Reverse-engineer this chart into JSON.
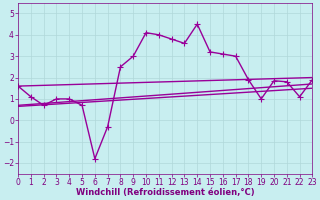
{
  "xlabel": "Windchill (Refroidissement éolien,°C)",
  "xlim": [
    0,
    23
  ],
  "ylim": [
    -2.5,
    5.5
  ],
  "xticks": [
    0,
    1,
    2,
    3,
    4,
    5,
    6,
    7,
    8,
    9,
    10,
    11,
    12,
    13,
    14,
    15,
    16,
    17,
    18,
    19,
    20,
    21,
    22,
    23
  ],
  "yticks": [
    -2,
    -1,
    0,
    1,
    2,
    3,
    4,
    5
  ],
  "background_color": "#c8eef0",
  "grid_color": "#b0d8da",
  "line_color": "#990099",
  "series": [
    {
      "x": [
        0,
        1,
        2,
        3,
        4,
        5,
        6,
        7,
        8,
        9,
        10,
        11,
        12,
        13,
        14,
        15,
        16,
        17,
        18,
        19,
        20,
        21,
        22,
        23
      ],
      "y": [
        1.6,
        1.1,
        0.7,
        1.0,
        1.0,
        0.7,
        -1.8,
        -0.3,
        2.5,
        3.0,
        4.1,
        4.0,
        3.8,
        3.6,
        4.5,
        3.2,
        3.1,
        3.0,
        1.9,
        1.0,
        1.85,
        1.8,
        1.1,
        1.9
      ],
      "marker": "+",
      "markersize": 4,
      "linewidth": 1.0
    },
    {
      "x": [
        0,
        23
      ],
      "y": [
        1.6,
        2.0
      ],
      "marker": null,
      "markersize": 0,
      "linewidth": 1.0
    },
    {
      "x": [
        0,
        23
      ],
      "y": [
        0.7,
        1.7
      ],
      "marker": null,
      "markersize": 0,
      "linewidth": 1.0
    },
    {
      "x": [
        0,
        23
      ],
      "y": [
        0.65,
        1.5
      ],
      "marker": null,
      "markersize": 0,
      "linewidth": 1.0
    }
  ],
  "font_color": "#800080",
  "tick_fontsize": 5.5,
  "label_fontsize": 6,
  "label_fontweight": "bold"
}
